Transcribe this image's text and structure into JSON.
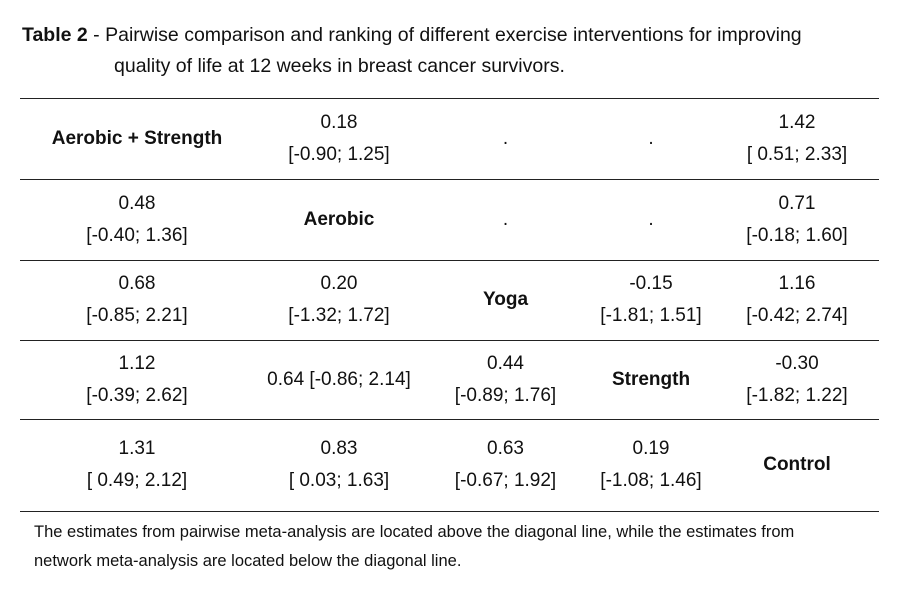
{
  "caption": {
    "label": "Table 2",
    "separator": " - ",
    "line1": "Pairwise comparison and ranking of different exercise interventions for improving",
    "line2": "quality of life at 12 weeks in breast cancer survivors."
  },
  "rows": [
    {
      "name": "row-aerobic-strength",
      "cells": [
        {
          "diag": true,
          "lines": [
            "Aerobic + Strength"
          ]
        },
        {
          "lines": [
            "0.18",
            "[-0.90; 1.25]"
          ]
        },
        {
          "lines": [
            "."
          ]
        },
        {
          "lines": [
            "."
          ]
        },
        {
          "lines": [
            "1.42",
            "[ 0.51; 2.33]"
          ]
        }
      ]
    },
    {
      "name": "row-aerobic",
      "cells": [
        {
          "lines": [
            "0.48",
            "[-0.40; 1.36]"
          ]
        },
        {
          "diag": true,
          "lines": [
            "Aerobic"
          ]
        },
        {
          "lines": [
            "."
          ]
        },
        {
          "lines": [
            "."
          ]
        },
        {
          "lines": [
            "0.71",
            "[-0.18; 1.60]"
          ]
        }
      ]
    },
    {
      "name": "row-yoga",
      "cells": [
        {
          "lines": [
            "0.68",
            "[-0.85; 2.21]"
          ]
        },
        {
          "lines": [
            "0.20",
            "[-1.32; 1.72]"
          ]
        },
        {
          "diag": true,
          "lines": [
            "Yoga"
          ]
        },
        {
          "lines": [
            "-0.15",
            "[-1.81; 1.51]"
          ]
        },
        {
          "lines": [
            "1.16",
            "[-0.42; 2.74]"
          ]
        }
      ]
    },
    {
      "name": "row-strength",
      "cells": [
        {
          "lines": [
            "1.12",
            "[-0.39; 2.62]"
          ]
        },
        {
          "lines": [
            "0.64 [-0.86; 2.14]"
          ]
        },
        {
          "lines": [
            "0.44",
            "[-0.89; 1.76]"
          ]
        },
        {
          "diag": true,
          "lines": [
            "Strength"
          ]
        },
        {
          "lines": [
            "-0.30",
            "[-1.82; 1.22]"
          ]
        }
      ]
    },
    {
      "name": "row-control",
      "cells": [
        {
          "lines": [
            "1.31",
            "[ 0.49; 2.12]"
          ]
        },
        {
          "lines": [
            "0.83",
            "[ 0.03; 1.63]"
          ]
        },
        {
          "lines": [
            "0.63",
            "[-0.67; 1.92]"
          ]
        },
        {
          "lines": [
            "0.19",
            "[-1.08; 1.46]"
          ]
        },
        {
          "diag": true,
          "lines": [
            "Control"
          ]
        }
      ]
    }
  ],
  "note": {
    "line1": "The estimates from pairwise meta-analysis are located above the diagonal line, while the estimates from",
    "line2": "network meta-analysis are located below the diagonal line."
  }
}
